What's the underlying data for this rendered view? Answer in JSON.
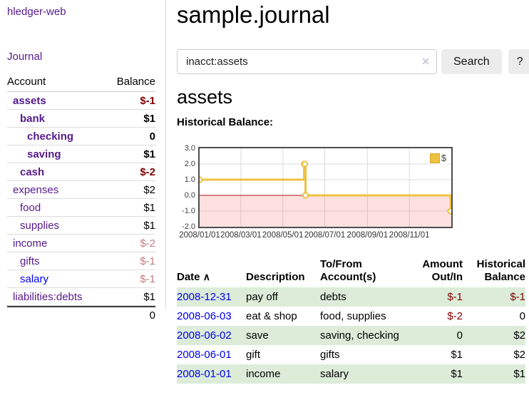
{
  "sidebar": {
    "brand": "hledger-web",
    "journal_label": "Journal",
    "account_header": "Account",
    "balance_header": "Balance",
    "accounts": [
      {
        "name": "assets",
        "depth": 1,
        "bold": true,
        "balance": "$-1",
        "balance_class": "neg-strong"
      },
      {
        "name": "bank",
        "depth": 2,
        "bold": true,
        "balance": "$1",
        "balance_class": "pos"
      },
      {
        "name": "checking",
        "depth": 3,
        "bold": true,
        "balance": "0",
        "balance_class": "pos"
      },
      {
        "name": "saving",
        "depth": 3,
        "bold": true,
        "balance": "$1",
        "balance_class": "pos"
      },
      {
        "name": "cash",
        "depth": 2,
        "bold": true,
        "balance": "$-2",
        "balance_class": "neg-strong"
      },
      {
        "name": "expenses",
        "depth": 1,
        "bold": false,
        "balance": "$2",
        "balance_class": "pos"
      },
      {
        "name": "food",
        "depth": 2,
        "bold": false,
        "balance": "$1",
        "balance_class": "pos"
      },
      {
        "name": "supplies",
        "depth": 2,
        "bold": false,
        "balance": "$1",
        "balance_class": "pos"
      },
      {
        "name": "income",
        "depth": 1,
        "bold": false,
        "balance": "$-2",
        "balance_class": "neg-soft"
      },
      {
        "name": "gifts",
        "depth": 2,
        "bold": false,
        "balance": "$-1",
        "balance_class": "neg-soft"
      },
      {
        "name": "salary",
        "depth": 2,
        "bold": false,
        "link_color": "blue",
        "balance": "$-1",
        "balance_class": "neg-soft"
      },
      {
        "name": "liabilities:debts",
        "depth": 1,
        "bold": false,
        "balance": "$1",
        "balance_class": "pos"
      }
    ],
    "total": "0"
  },
  "header": {
    "title": "sample.journal"
  },
  "search": {
    "value": "inacct:assets",
    "clear_icon": "✕",
    "button_label": "Search",
    "help_label": "?"
  },
  "account_page": {
    "heading": "assets",
    "chart_label": "Historical Balance:"
  },
  "chart_data": {
    "type": "line",
    "step": true,
    "title": "Historical Balance",
    "legend": "$",
    "legend_position": "top-right",
    "series": [
      {
        "name": "$",
        "color": "#EDC240",
        "points": [
          [
            "2008-01-01",
            1
          ],
          [
            "2008-06-01",
            2
          ],
          [
            "2008-06-02",
            2
          ],
          [
            "2008-06-03",
            0
          ],
          [
            "2008-12-31",
            -1
          ]
        ]
      }
    ],
    "x_range": [
      "2008-01-01",
      "2009-01-01"
    ],
    "ylim": [
      -2,
      3
    ],
    "y_ticks": [
      "3.0",
      "2.0",
      "1.0",
      "0.0",
      "-1.0",
      "-2.0"
    ],
    "x_ticks": [
      "2008/01/01",
      "2008/03/01",
      "2008/05/01",
      "2008/07/01",
      "2008/09/01",
      "2008/11/01"
    ],
    "grid": true,
    "negative_region": true
  },
  "register": {
    "sort_icon": "∧",
    "columns": [
      {
        "line1": "Date",
        "line2": ""
      },
      {
        "line1": "Description",
        "line2": ""
      },
      {
        "line1": "To/From",
        "line2": "Account(s)"
      },
      {
        "line1": "Amount",
        "line2": "Out/In"
      },
      {
        "line1": "Historical",
        "line2": "Balance"
      }
    ],
    "rows": [
      {
        "date": "2008-12-31",
        "description": "pay off",
        "accounts": "debts",
        "amount": "$-1",
        "amount_negative": true,
        "balance": "$-1",
        "balance_negative": true,
        "shaded": true
      },
      {
        "date": "2008-06-03",
        "description": "eat & shop",
        "accounts": "food, supplies",
        "amount": "$-2",
        "amount_negative": true,
        "balance": "0",
        "balance_negative": false,
        "shaded": false
      },
      {
        "date": "2008-06-02",
        "description": "save",
        "accounts": "saving, checking",
        "amount": "0",
        "amount_negative": false,
        "balance": "$2",
        "balance_negative": false,
        "shaded": true
      },
      {
        "date": "2008-06-01",
        "description": "gift",
        "accounts": "gifts",
        "amount": "$1",
        "amount_negative": false,
        "balance": "$2",
        "balance_negative": false,
        "shaded": false
      },
      {
        "date": "2008-01-01",
        "description": "income",
        "accounts": "salary",
        "amount": "$1",
        "amount_negative": false,
        "balance": "$1",
        "balance_negative": false,
        "shaded": true
      }
    ]
  },
  "colors": {
    "link_purple": "#551A8B",
    "link_blue": "#0000EE",
    "negative_strong": "#800000",
    "negative_soft": "#c17d7d",
    "row_shade_green": "#dcecd9",
    "chart_line": "#EDC240",
    "chart_negative_fill": "#fbdcdc",
    "chart_zero_line": "#a51515",
    "chart_border": "#4d4d4d"
  }
}
